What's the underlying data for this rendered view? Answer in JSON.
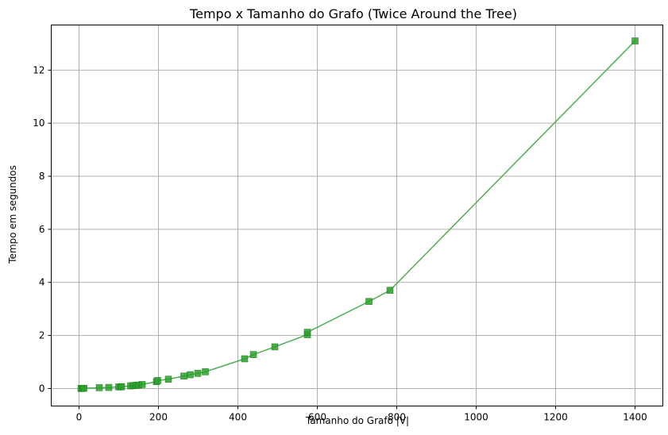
{
  "chart_data": {
    "type": "line",
    "title": "Tempo x Tamanho do Grafo (Twice Around the Tree)",
    "xlabel": "Tamanho do Grafo |V|",
    "ylabel": "Tempo em segundos",
    "xlim": [
      -70,
      1470
    ],
    "ylim": [
      -0.66,
      13.7
    ],
    "xticks": [
      0,
      200,
      400,
      600,
      800,
      1000,
      1200,
      1400
    ],
    "yticks": [
      0,
      2,
      4,
      6,
      8,
      10,
      12
    ],
    "grid": true,
    "legend": "none",
    "series": [
      {
        "color": "#2ca02c",
        "marker": "square",
        "line_color": "#4caf50",
        "x": [
          5,
          8,
          10,
          12,
          51,
          75,
          100,
          105,
          107,
          130,
          136,
          144,
          150,
          159,
          195,
          198,
          225,
          264,
          280,
          299,
          318,
          417,
          439,
          493,
          575,
          575,
          730,
          783,
          1400
        ],
        "y": [
          0.002,
          0.004,
          0.006,
          0.008,
          0.03,
          0.04,
          0.06,
          0.065,
          0.07,
          0.1,
          0.11,
          0.12,
          0.13,
          0.15,
          0.26,
          0.3,
          0.35,
          0.47,
          0.52,
          0.57,
          0.63,
          1.12,
          1.28,
          1.57,
          2.03,
          2.12,
          3.28,
          3.7,
          13.1
        ]
      }
    ]
  }
}
